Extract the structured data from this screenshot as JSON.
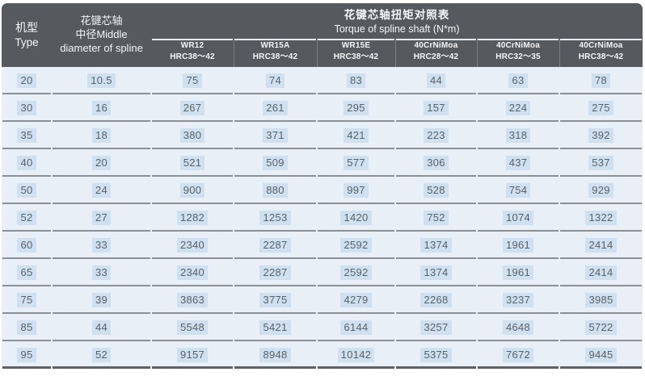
{
  "page": {
    "header": {
      "type_col": {
        "zh": "机型",
        "en": "Type"
      },
      "diameter_col": {
        "line1": "花键芯轴",
        "line2": "中径Middle",
        "line3": "diameter of spline"
      },
      "torque_title": {
        "zh": "花键芯轴扭矩对照表",
        "en": "Torque of spline shaft  (N*m)"
      },
      "materials": [
        {
          "name": "WR12",
          "hardness": "HRC38～42"
        },
        {
          "name": "WR15A",
          "hardness": "HRC38～42"
        },
        {
          "name": "WR15E",
          "hardness": "HRC38～42"
        },
        {
          "name": "40CrNiMoa",
          "hardness": "HRC28～42"
        },
        {
          "name": "40CrNiMoa",
          "hardness": "HRC32～35"
        },
        {
          "name": "40CrNiMoa",
          "hardness": "HRC38～42"
        }
      ]
    },
    "rows": [
      {
        "type": "20",
        "diameter": "10.5",
        "torques": [
          "75",
          "74",
          "83",
          "44",
          "63",
          "78"
        ]
      },
      {
        "type": "30",
        "diameter": "16",
        "torques": [
          "267",
          "261",
          "295",
          "157",
          "224",
          "275"
        ]
      },
      {
        "type": "35",
        "diameter": "18",
        "torques": [
          "380",
          "371",
          "421",
          "223",
          "318",
          "392"
        ]
      },
      {
        "type": "40",
        "diameter": "20",
        "torques": [
          "521",
          "509",
          "577",
          "306",
          "437",
          "537"
        ]
      },
      {
        "type": "50",
        "diameter": "24",
        "torques": [
          "900",
          "880",
          "997",
          "528",
          "754",
          "929"
        ]
      },
      {
        "type": "52",
        "diameter": "27",
        "torques": [
          "1282",
          "1253",
          "1420",
          "752",
          "1074",
          "1322"
        ]
      },
      {
        "type": "60",
        "diameter": "33",
        "torques": [
          "2340",
          "2287",
          "2592",
          "1374",
          "1961",
          "2414"
        ]
      },
      {
        "type": "65",
        "diameter": "33",
        "torques": [
          "2340",
          "2287",
          "2592",
          "1374",
          "1961",
          "2414"
        ]
      },
      {
        "type": "75",
        "diameter": "39",
        "torques": [
          "3863",
          "3775",
          "4279",
          "2268",
          "3237",
          "3985"
        ]
      },
      {
        "type": "85",
        "diameter": "44",
        "torques": [
          "5548",
          "5421",
          "6144",
          "3257",
          "4648",
          "5722"
        ]
      },
      {
        "type": "95",
        "diameter": "52",
        "torques": [
          "9157",
          "8948",
          "10142",
          "5375",
          "7672",
          "9445"
        ]
      }
    ],
    "colors": {
      "header_bg": "#56595e",
      "header_text": "#f4f6f8",
      "row_bg": "#e9eff7",
      "highlight": "#cfe1f1",
      "cell_text": "#5b6065",
      "separator": "#8b9096",
      "bottom_border": "#5d6165",
      "header_line": "#e6ebf2"
    }
  }
}
